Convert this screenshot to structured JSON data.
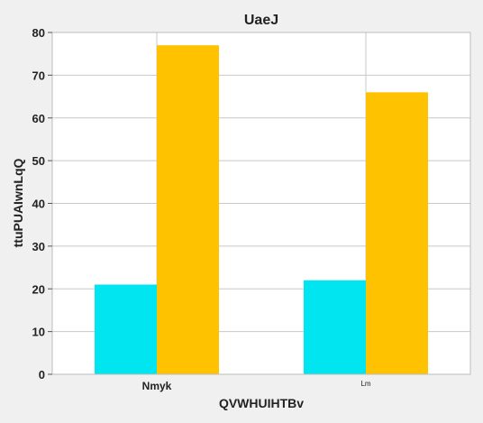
{
  "chart_data": {
    "type": "bar",
    "title": "UaeJ",
    "xlabel": "QVWHUIHTBv",
    "ylabel": "ttuPUAIwnLqQ",
    "categories": [
      "Nmyk",
      "Lm"
    ],
    "series": [
      {
        "values": [
          21,
          22
        ],
        "color": "#00e5f0"
      },
      {
        "values": [
          77,
          66
        ],
        "color": "#ffc200"
      }
    ],
    "ylim": [
      0,
      80
    ],
    "yticks": [
      0,
      10,
      20,
      30,
      40,
      50,
      60,
      70,
      80
    ],
    "grid": true,
    "legend": "none"
  }
}
